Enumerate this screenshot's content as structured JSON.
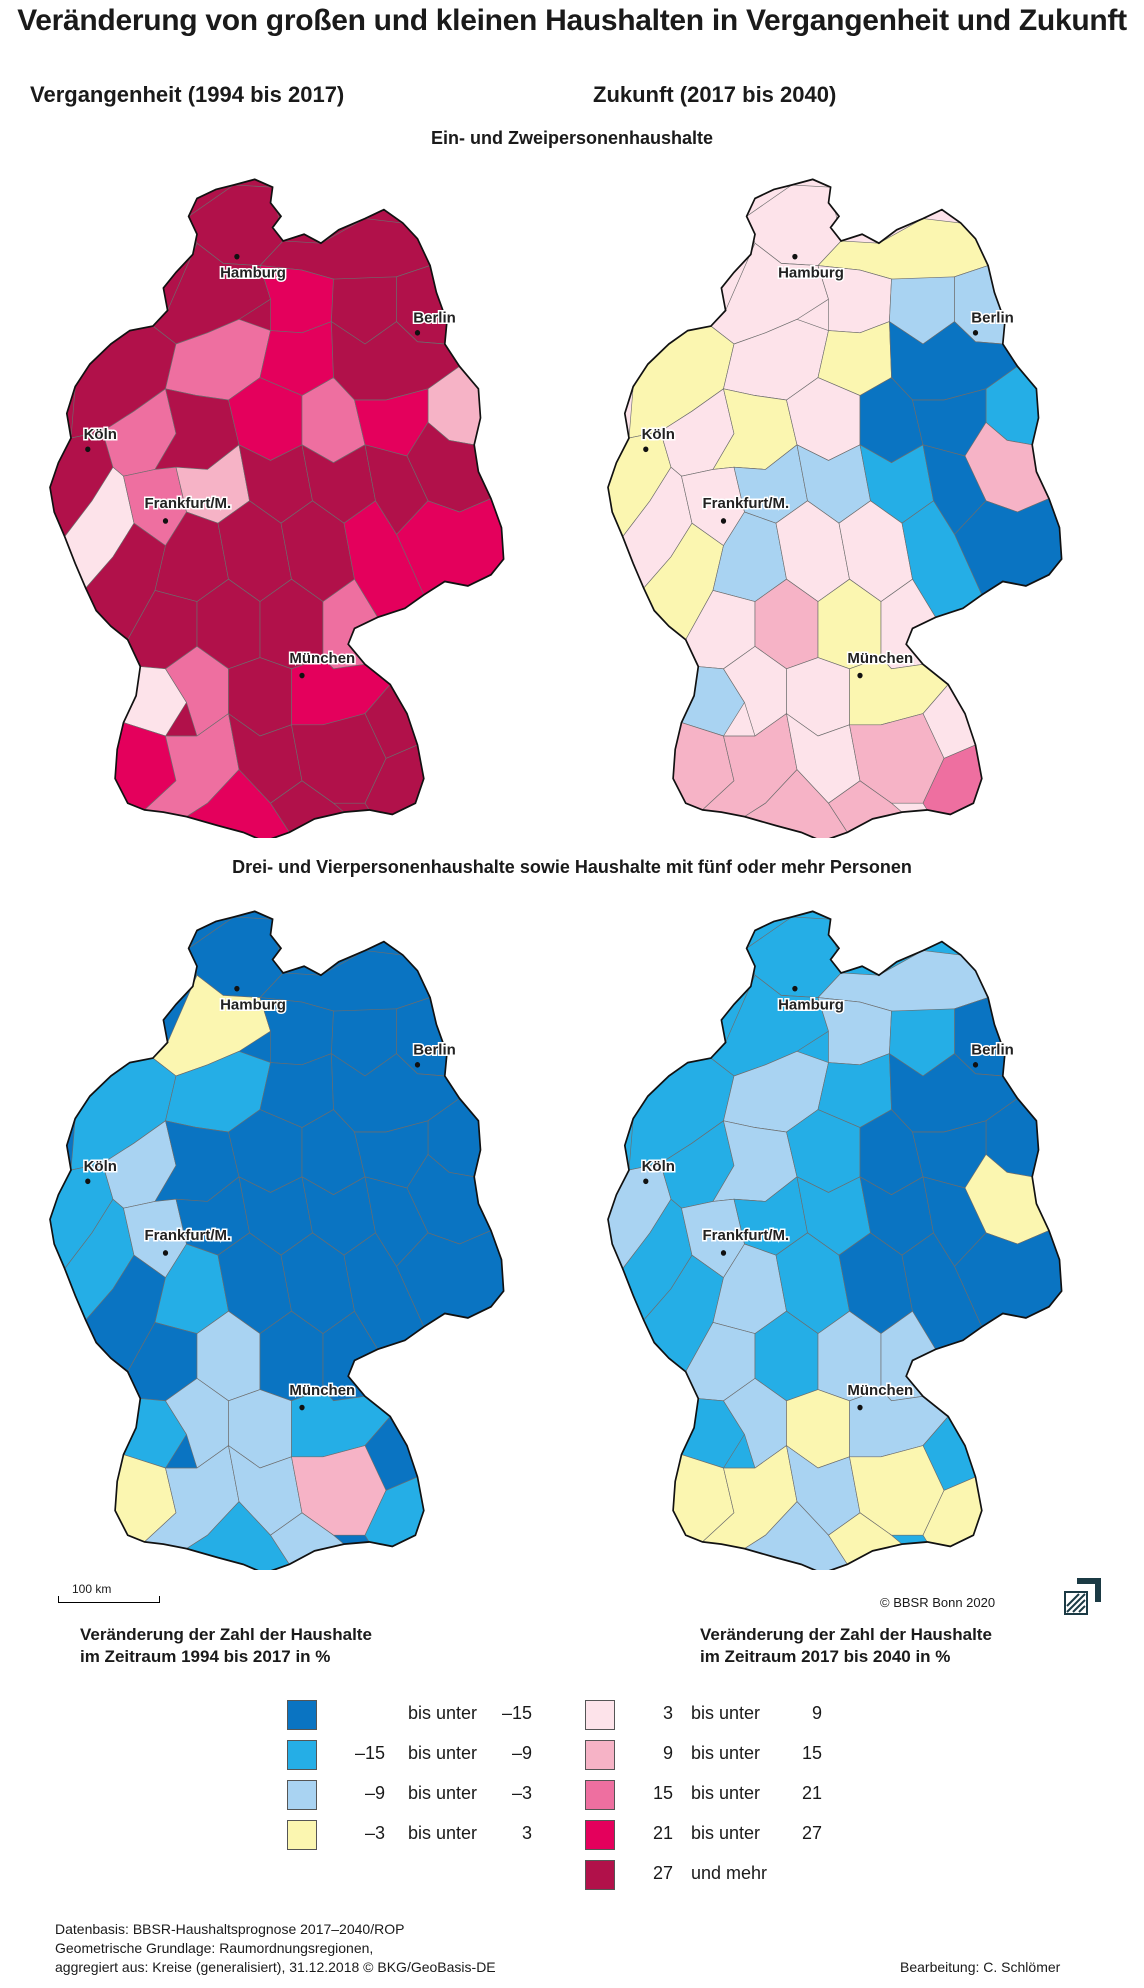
{
  "title": "Veränderung von großen und kleinen Haushalten in Vergangenheit und Zukunft",
  "columns": {
    "past": "Vergangenheit (1994 bis 2017)",
    "future": "Zukunft (2017 bis 2040)"
  },
  "sections": {
    "small": "Ein- und Zweipersonenhaushalte",
    "large": "Drei- und Vierpersonenhaushalte sowie Haushalte mit fünf oder mehr Personen"
  },
  "cities": [
    "Hamburg",
    "Berlin",
    "Köln",
    "Frankfurt/M.",
    "München"
  ],
  "scale_bar": "100 km",
  "copyright": "© BBSR Bonn 2020",
  "legend": {
    "heading_past": [
      "Veränderung der Zahl der Haushalte",
      "im Zeitraum 1994 bis 2017 in %"
    ],
    "heading_future": [
      "Veränderung der Zahl der Haushalte",
      "im Zeitraum 2017 bis 2040 in %"
    ],
    "classes": [
      {
        "from": "",
        "mid": "bis unter",
        "to": "–15",
        "color": "#0a74c2"
      },
      {
        "from": "–15",
        "mid": "bis unter",
        "to": "–9",
        "color": "#25aee6"
      },
      {
        "from": "–9",
        "mid": "bis unter",
        "to": "–3",
        "color": "#a9d3f2"
      },
      {
        "from": "–3",
        "mid": "bis unter",
        "to": "3",
        "color": "#fbf6b0"
      },
      {
        "from": "3",
        "mid": "bis unter",
        "to": "9",
        "color": "#fde3ea"
      },
      {
        "from": "9",
        "mid": "bis unter",
        "to": "15",
        "color": "#f6b3c6"
      },
      {
        "from": "15",
        "mid": "bis unter",
        "to": "21",
        "color": "#ee6fa0"
      },
      {
        "from": "21",
        "mid": "bis unter",
        "to": "27",
        "color": "#e4005c"
      },
      {
        "from": "27",
        "mid": "und mehr",
        "to": "",
        "color": "#b1114a"
      }
    ]
  },
  "footer": {
    "sources": [
      "Datenbasis: BBSR-Haushaltsprognose 2017–2040/ROP",
      "Geometrische Grundlage: Raumordnungsregionen,",
      "aggregiert aus: Kreise (generalisiert), 31.12.2018 © BKG/GeoBasis-DE"
    ],
    "author": "Bearbeitung: C. Schlömer"
  }
}
